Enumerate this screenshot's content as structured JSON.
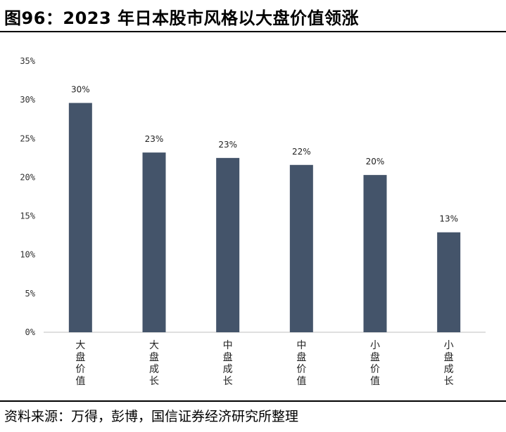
{
  "figure": {
    "title": "图96：2023 年日本股市风格以大盘价值领涨",
    "source": "资料来源：万得，彭博，国信证券经济研究所整理"
  },
  "chart_data": {
    "type": "bar",
    "title": "图96：2023 年日本股市风格以大盘价值领涨",
    "xlabel": "",
    "ylabel": "",
    "categories": [
      "大盘价值",
      "大盘成长",
      "中盘成长",
      "中盘价值",
      "小盘价值",
      "小盘成长"
    ],
    "values": [
      29.6,
      23.2,
      22.5,
      21.6,
      20.3,
      12.9
    ],
    "data_labels": [
      "30%",
      "23%",
      "23%",
      "22%",
      "20%",
      "13%"
    ],
    "ylim": [
      0,
      35
    ],
    "yticks": [
      "0%",
      "5%",
      "10%",
      "15%",
      "20%",
      "25%",
      "30%",
      "35%"
    ],
    "ytick_values": [
      0,
      5,
      10,
      15,
      20,
      25,
      30,
      35
    ],
    "bar_color": "#44546a",
    "grid": false,
    "legend": "none"
  }
}
